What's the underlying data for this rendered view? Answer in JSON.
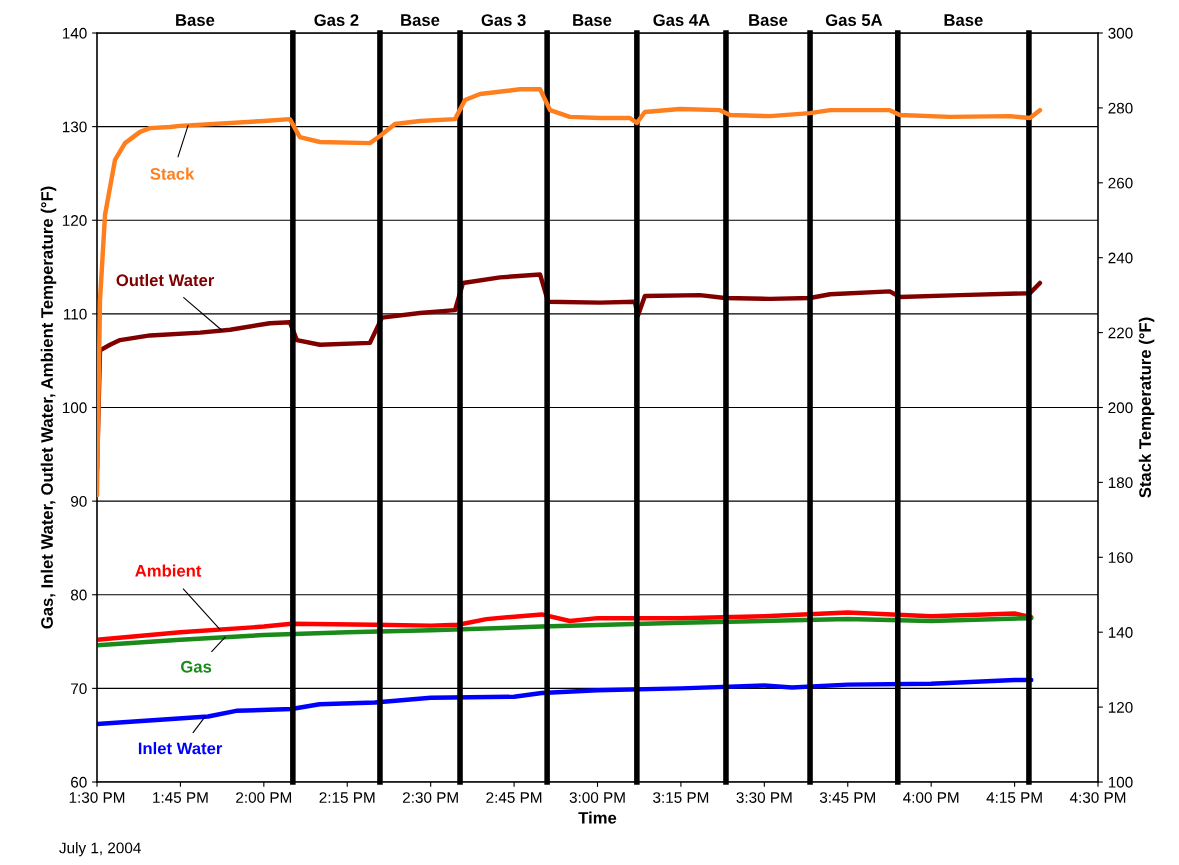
{
  "chart_data": {
    "type": "line",
    "xlabel": "Time",
    "ylabel": "Gas, Inlet Water, Outlet Water, Ambient Temperature (°F)",
    "y2label": "Stack Temperature (°F)",
    "annotations": [
      "Base",
      "Gas 2",
      "Base",
      "Gas 3",
      "Base",
      "Gas 4A",
      "Base",
      "Gas 5A",
      "Base",
      "July 1, 2004"
    ],
    "xlim": [
      13.5,
      16.5
    ],
    "xticks": [
      {
        "value": 13.5,
        "label": "1:30 PM"
      },
      {
        "value": 13.75,
        "label": "1:45 PM"
      },
      {
        "value": 14.0,
        "label": "2:00 PM"
      },
      {
        "value": 14.25,
        "label": "2:15 PM"
      },
      {
        "value": 14.5,
        "label": "2:30 PM"
      },
      {
        "value": 14.75,
        "label": "2:45 PM"
      },
      {
        "value": 15.0,
        "label": "3:00 PM"
      },
      {
        "value": 15.25,
        "label": "3:15 PM"
      },
      {
        "value": 15.5,
        "label": "3:30 PM"
      },
      {
        "value": 15.75,
        "label": "3:45 PM"
      },
      {
        "value": 16.0,
        "label": "4:00 PM"
      },
      {
        "value": 16.25,
        "label": "4:15 PM"
      },
      {
        "value": 16.5,
        "label": "4:30 PM"
      }
    ],
    "ylim": [
      60,
      140
    ],
    "yticks": [
      60,
      70,
      80,
      90,
      100,
      110,
      120,
      130,
      140
    ],
    "y2lim": [
      100,
      300
    ],
    "y2ticks": [
      100,
      120,
      140,
      160,
      180,
      200,
      220,
      240,
      260,
      280,
      300
    ],
    "grid": "y",
    "legend": false,
    "marker": "none",
    "line_style": "solid",
    "series": [
      {
        "name": "Stack",
        "color": "#ff7f1e",
        "axis": "y2",
        "x": [
          13.5,
          13.509,
          13.524,
          13.554,
          13.584,
          13.629,
          13.659,
          13.719,
          13.749,
          14.0,
          14.078,
          14.108,
          14.168,
          14.318,
          14.348,
          14.393,
          14.468,
          14.573,
          14.603,
          14.648,
          14.768,
          14.828,
          14.858,
          14.917,
          15.007,
          15.097,
          15.118,
          15.142,
          15.247,
          15.367,
          15.397,
          15.517,
          15.637,
          15.697,
          15.876,
          15.906,
          16.056,
          16.236,
          16.296,
          16.326
        ],
        "values": [
          176.6,
          228.7,
          251.4,
          266.1,
          270.6,
          273.6,
          274.6,
          274.9,
          275.2,
          276.5,
          277.0,
          272.2,
          270.9,
          270.6,
          272.5,
          275.7,
          276.5,
          277.0,
          282.1,
          283.7,
          285.0,
          285.0,
          279.4,
          277.6,
          277.3,
          277.3,
          276.0,
          278.9,
          279.7,
          279.4,
          278.1,
          277.8,
          278.6,
          279.4,
          279.4,
          278.1,
          277.6,
          277.8,
          277.3,
          279.4
        ]
      },
      {
        "name": "Outlet Water",
        "color": "#800000",
        "x": [
          13.5,
          13.509,
          13.539,
          13.569,
          13.659,
          13.809,
          13.899,
          14.018,
          14.078,
          14.099,
          14.168,
          14.318,
          14.354,
          14.468,
          14.573,
          14.597,
          14.708,
          14.828,
          14.852,
          15.007,
          15.112,
          15.121,
          15.142,
          15.307,
          15.382,
          15.517,
          15.637,
          15.697,
          15.876,
          15.906,
          16.086,
          16.296,
          16.326
        ],
        "values": [
          93.3,
          106.1,
          106.7,
          107.2,
          107.7,
          108.0,
          108.3,
          109.0,
          109.1,
          107.2,
          106.7,
          106.9,
          109.6,
          110.1,
          110.4,
          113.3,
          113.9,
          114.2,
          111.3,
          111.2,
          111.3,
          109.8,
          111.9,
          112.0,
          111.7,
          111.6,
          111.7,
          112.1,
          112.4,
          111.8,
          112.0,
          112.2,
          113.3
        ]
      },
      {
        "name": "Ambient",
        "color": "#ff0000",
        "x": [
          13.5,
          13.75,
          14.0,
          14.083,
          14.333,
          14.5,
          14.583,
          14.667,
          14.833,
          14.917,
          15.0,
          15.25,
          15.5,
          15.75,
          16.0,
          16.25,
          16.3
        ],
        "values": [
          75.2,
          76.0,
          76.6,
          76.9,
          76.8,
          76.7,
          76.8,
          77.4,
          77.9,
          77.2,
          77.5,
          77.5,
          77.7,
          78.1,
          77.7,
          78.0,
          77.6
        ]
      },
      {
        "name": "Gas",
        "color": "#1a8a1a",
        "x": [
          13.5,
          13.75,
          14.0,
          14.25,
          14.5,
          14.833,
          15.25,
          15.75,
          16.0,
          16.3
        ],
        "values": [
          74.6,
          75.2,
          75.7,
          76.0,
          76.2,
          76.6,
          77.0,
          77.4,
          77.2,
          77.5
        ]
      },
      {
        "name": "Inlet Water",
        "color": "#0000ff",
        "x": [
          13.5,
          13.667,
          13.833,
          13.917,
          14.083,
          14.167,
          14.333,
          14.5,
          14.75,
          14.833,
          15.0,
          15.25,
          15.5,
          15.583,
          15.75,
          16.0,
          16.25,
          16.3
        ],
        "values": [
          66.2,
          66.6,
          67.0,
          67.6,
          67.8,
          68.3,
          68.5,
          69.0,
          69.1,
          69.5,
          69.8,
          70.0,
          70.3,
          70.1,
          70.4,
          70.5,
          70.9,
          70.9
        ]
      }
    ],
    "ref_lines": [
      {
        "axis": "x",
        "value": 14.087,
        "color": "#000000"
      },
      {
        "axis": "x",
        "value": 14.348,
        "color": "#000000"
      },
      {
        "axis": "x",
        "value": 14.588,
        "color": "#000000"
      },
      {
        "axis": "x",
        "value": 14.849,
        "color": "#000000"
      },
      {
        "axis": "x",
        "value": 15.118,
        "color": "#000000"
      },
      {
        "axis": "x",
        "value": 15.385,
        "color": "#000000"
      },
      {
        "axis": "x",
        "value": 15.637,
        "color": "#000000"
      },
      {
        "axis": "x",
        "value": 15.9,
        "color": "#000000"
      },
      {
        "axis": "x",
        "value": 16.293,
        "color": "#000000"
      }
    ]
  }
}
